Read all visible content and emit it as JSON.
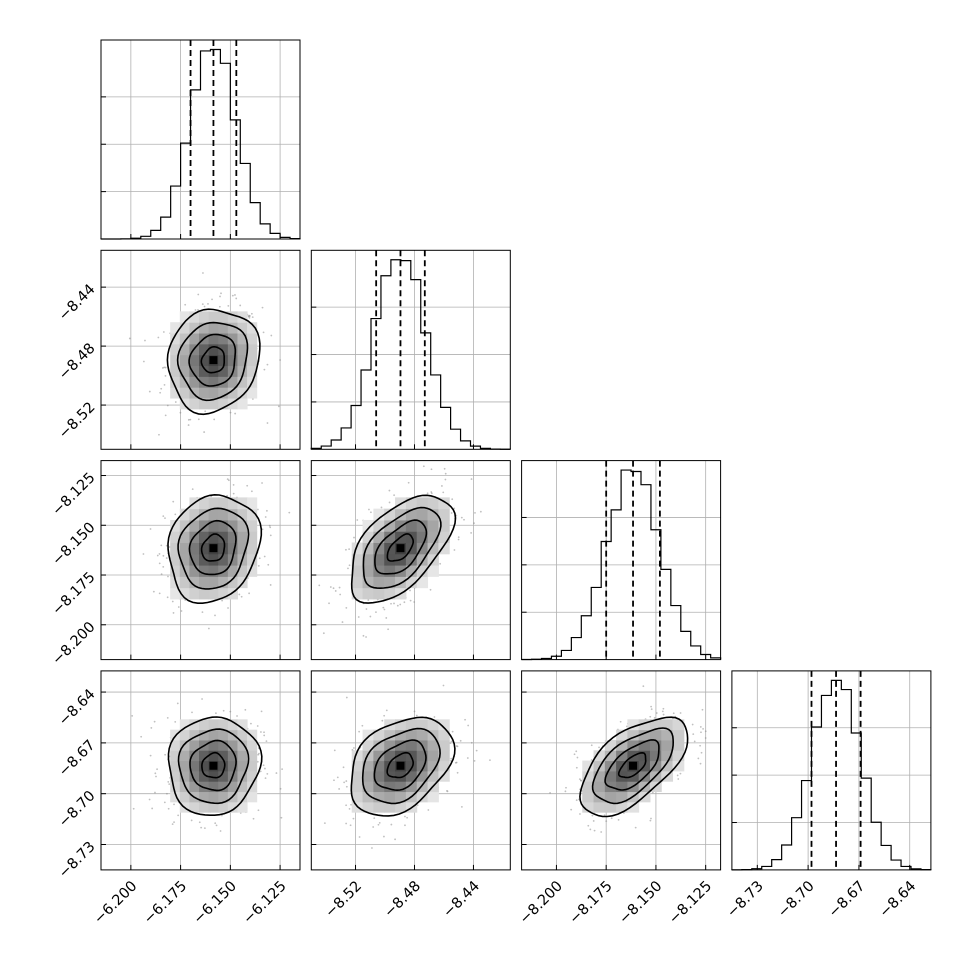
{
  "chart_data": {
    "type": "corner",
    "description_free": true,
    "grid": true,
    "parameters": [
      {
        "index": 0,
        "range": [
          -6.215,
          -6.115
        ],
        "ticks": [
          -6.2,
          -6.175,
          -6.15,
          -6.125
        ],
        "tick_labels": [
          "−6.200",
          "−6.175",
          "−6.150",
          "−6.125"
        ],
        "mean": -6.1585,
        "std": 0.0115,
        "quantiles": {
          "q16": -6.17,
          "q50": -6.1585,
          "q84": -6.147
        }
      },
      {
        "index": 1,
        "range": [
          -8.55,
          -8.415
        ],
        "ticks": [
          -8.52,
          -8.48,
          -8.44
        ],
        "tick_labels": [
          "−8.52",
          "−8.48",
          "−8.44"
        ],
        "mean": -8.4895,
        "std": 0.0175,
        "quantiles": {
          "q16": -8.506,
          "q50": -8.4895,
          "q84": -8.473
        }
      },
      {
        "index": 2,
        "range": [
          -8.2175,
          -8.1175
        ],
        "ticks": [
          -8.2,
          -8.175,
          -8.15,
          -8.125
        ],
        "tick_labels": [
          "−8.200",
          "−8.175",
          "−8.150",
          "−8.125"
        ],
        "mean": -8.1615,
        "std": 0.0135,
        "quantiles": {
          "q16": -8.175,
          "q50": -8.1615,
          "q84": -8.148
        }
      },
      {
        "index": 3,
        "range": [
          -8.745,
          -8.6275
        ],
        "ticks": [
          -8.73,
          -8.7,
          -8.67,
          -8.64
        ],
        "tick_labels": [
          "−8.73",
          "−8.70",
          "−8.67",
          "−8.64"
        ],
        "mean": -8.6835,
        "std": 0.0145,
        "quantiles": {
          "q16": -8.698,
          "q50": -8.6835,
          "q84": -8.669
        }
      }
    ],
    "correlations": {
      "1-0": 0.1,
      "2-0": 0.15,
      "2-1": 0.55,
      "3-0": 0.05,
      "3-1": 0.35,
      "3-2": 0.6
    },
    "histogram_bins": 20,
    "contour_levels_sigma": [
      0.5,
      1.0,
      1.5,
      2.0
    ],
    "scatter_samples_per_panel": 450
  }
}
